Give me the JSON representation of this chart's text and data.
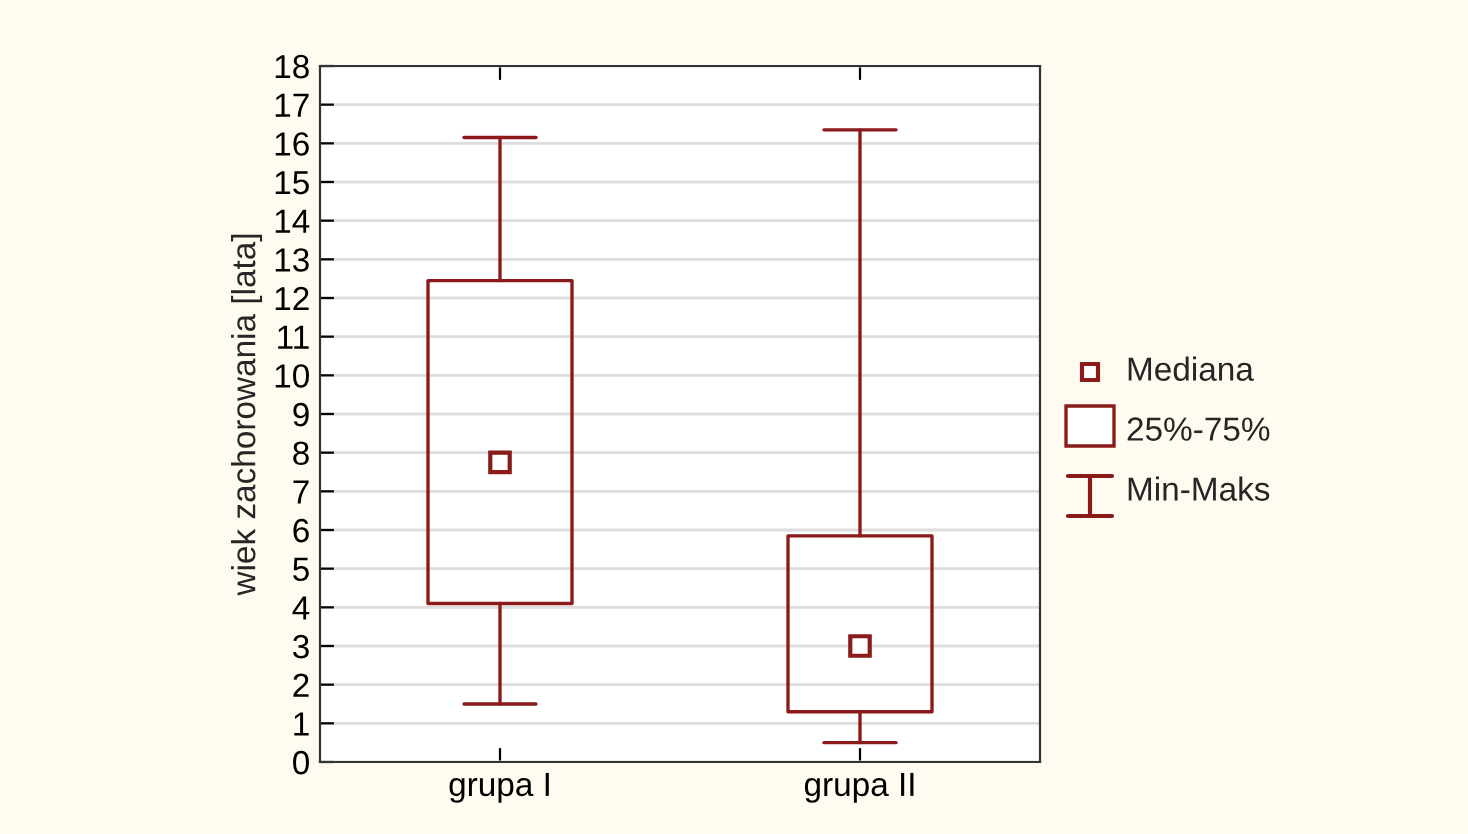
{
  "chart_data": {
    "type": "box",
    "ylabel": "wiek zachorowania [lata]",
    "categories": [
      "grupa I",
      "grupa II"
    ],
    "series": [
      {
        "color": "#8b1a1a",
        "boxes": [
          {
            "low": 1.5,
            "q1": 4.1,
            "median": 7.75,
            "q3": 12.45,
            "high": 16.15
          },
          {
            "low": 0.5,
            "q1": 1.3,
            "median": 3.0,
            "q3": 5.85,
            "high": 16.35
          }
        ]
      }
    ],
    "ylim": [
      0,
      18
    ],
    "yticks": [
      0,
      1,
      2,
      3,
      4,
      5,
      6,
      7,
      8,
      9,
      10,
      11,
      12,
      13,
      14,
      15,
      16,
      17,
      18
    ],
    "grid": "y",
    "annotations": [
      "Mediana",
      "25%-75%",
      "Min-Maks"
    ]
  }
}
